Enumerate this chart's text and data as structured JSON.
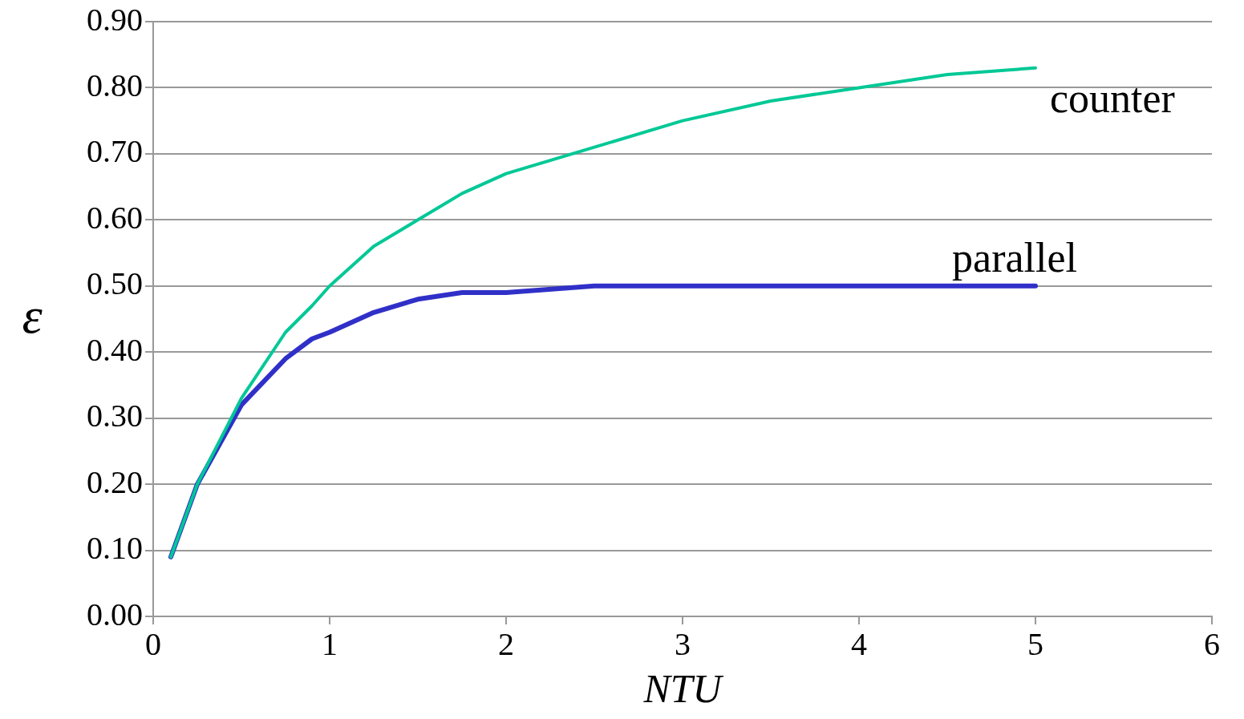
{
  "chart_data": {
    "type": "line",
    "xlabel": "NTU",
    "ylabel": "ε",
    "xlim": [
      0,
      6
    ],
    "xticks": [
      0,
      1,
      2,
      3,
      4,
      5,
      6
    ],
    "ylim": [
      0,
      0.9
    ],
    "yticks": [
      {
        "value": 0,
        "label": "0.00"
      },
      {
        "value": 0.1,
        "label": "0.10"
      },
      {
        "value": 0.2,
        "label": "0.20"
      },
      {
        "value": 0.3,
        "label": "0.30"
      },
      {
        "value": 0.4,
        "label": "0.40"
      },
      {
        "value": 0.5,
        "label": "0.50"
      },
      {
        "value": 0.6,
        "label": "0.60"
      },
      {
        "value": 0.7,
        "label": "0.70"
      },
      {
        "value": 0.8,
        "label": "0.80"
      },
      {
        "value": 0.9,
        "label": "0.90"
      }
    ],
    "grid": "y",
    "legend": false,
    "marker": "none",
    "line_style": "solid",
    "x": [
      0.1,
      0.25,
      0.5,
      0.75,
      0.9,
      1,
      1.25,
      1.5,
      1.75,
      2,
      2.5,
      3,
      3.5,
      4,
      4.5,
      5
    ],
    "series": [
      {
        "name": "counter",
        "color": "#00c896",
        "values": [
          0.09,
          0.2,
          0.33,
          0.43,
          0.47,
          0.5,
          0.56,
          0.6,
          0.64,
          0.67,
          0.71,
          0.75,
          0.78,
          0.8,
          0.82,
          0.83
        ]
      },
      {
        "name": "parallel",
        "color": "#3030c8",
        "values": [
          0.09,
          0.2,
          0.32,
          0.39,
          0.42,
          0.43,
          0.46,
          0.48,
          0.49,
          0.49,
          0.5,
          0.5,
          0.5,
          0.5,
          0.5,
          0.5
        ]
      }
    ]
  }
}
